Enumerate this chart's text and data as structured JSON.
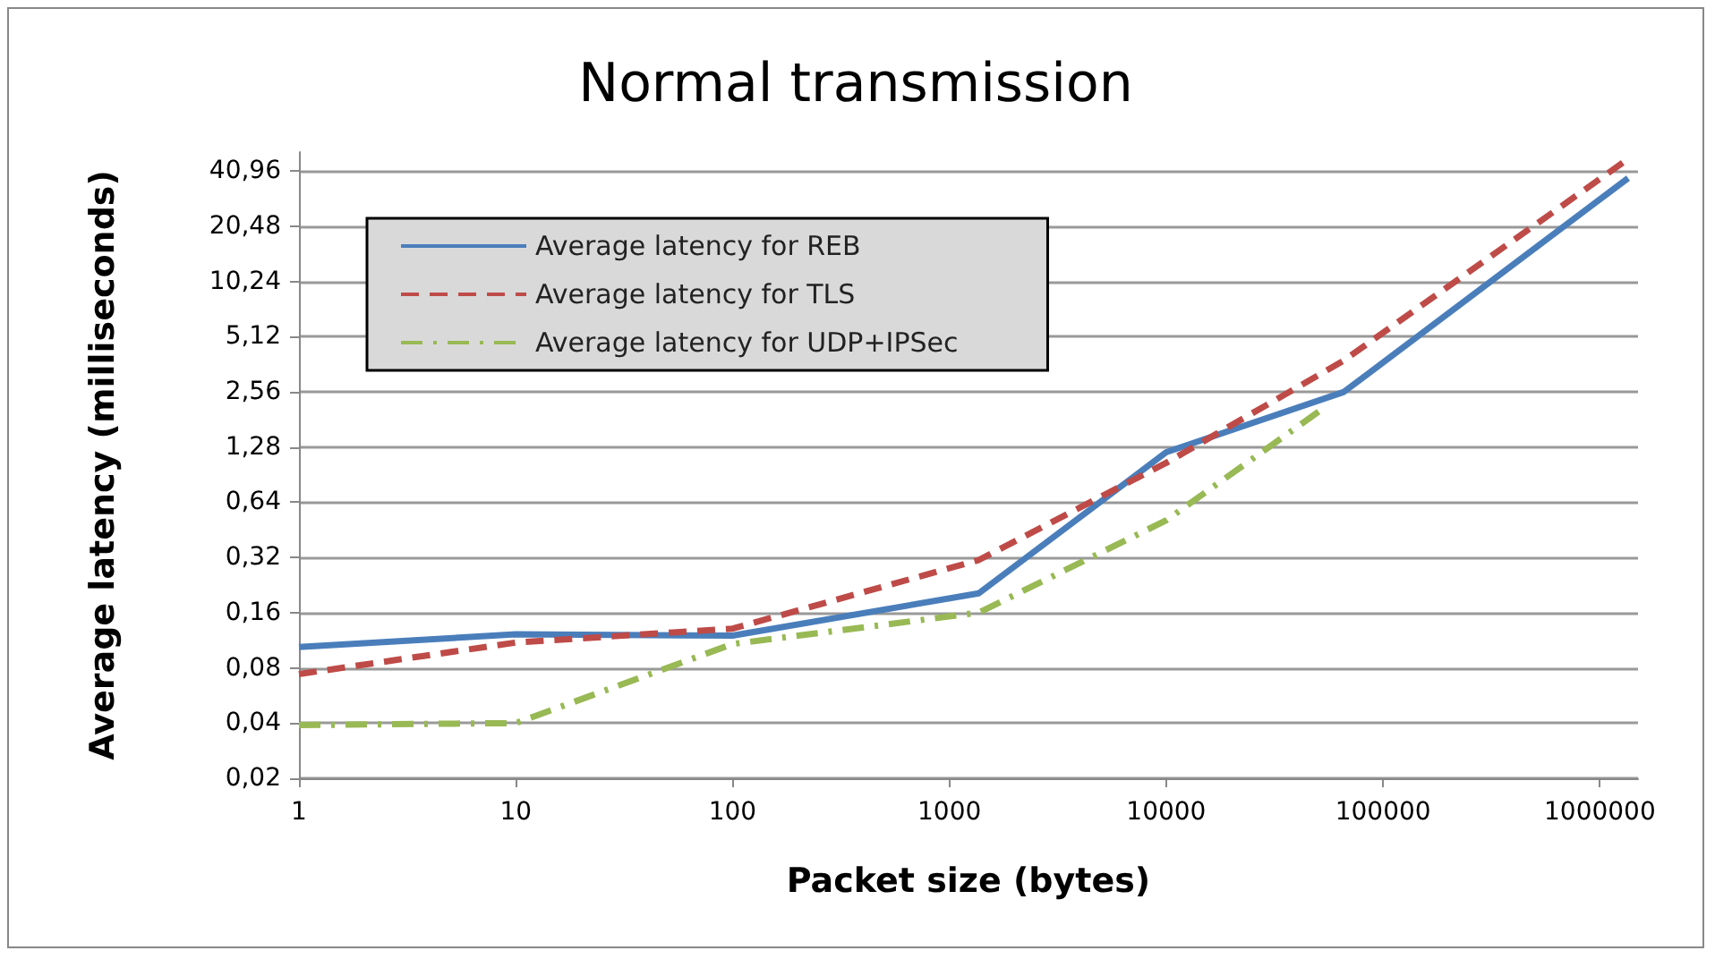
{
  "chart_data": {
    "type": "line",
    "title": "Normal transmission",
    "xlabel": "Packet size (bytes)",
    "ylabel": "Average latency (milliseconds)",
    "log": "xy",
    "grid": "y",
    "legend": "top left",
    "marker": "none",
    "x": [
      1,
      10,
      100,
      1365,
      10000,
      66000,
      1350000
    ],
    "series": [
      {
        "name": "Average latency for REB",
        "color": "#4a7ebb",
        "line_style": "solid",
        "values": [
          0.104,
          0.122,
          0.12,
          0.204,
          1.2,
          2.56,
          37.5
        ]
      },
      {
        "name": "Average latency for TLS",
        "color": "#be4b48",
        "line_style": "dashed",
        "values": [
          0.074,
          0.11,
          0.131,
          0.31,
          1.05,
          3.8,
          47.7
        ]
      },
      {
        "name": "Average latency for UDP+IPSec",
        "color": "#98b954",
        "line_style": "dashdot",
        "x": [
          1,
          10,
          100,
          1365,
          10000,
          52000
        ],
        "values": [
          0.039,
          0.04,
          0.108,
          0.16,
          0.51,
          2.05
        ]
      }
    ],
    "xlim": [
      1,
      1500000
    ],
    "xticks": [
      1,
      10,
      100,
      1000,
      10000,
      100000,
      1000000
    ],
    "ylim": [
      0.02,
      52
    ],
    "yticks": [
      {
        "value": 0.02,
        "label": "0,02"
      },
      {
        "value": 0.04,
        "label": "0,04"
      },
      {
        "value": 0.08,
        "label": "0,08"
      },
      {
        "value": 0.16,
        "label": "0,16"
      },
      {
        "value": 0.32,
        "label": "0,32"
      },
      {
        "value": 0.64,
        "label": "0,64"
      },
      {
        "value": 1.28,
        "label": "1,28"
      },
      {
        "value": 2.56,
        "label": "2,56"
      },
      {
        "value": 5.12,
        "label": "5,12"
      },
      {
        "value": 10.24,
        "label": "10,24"
      },
      {
        "value": 20.48,
        "label": "20,48"
      },
      {
        "value": 40.96,
        "label": "40,96"
      }
    ]
  }
}
